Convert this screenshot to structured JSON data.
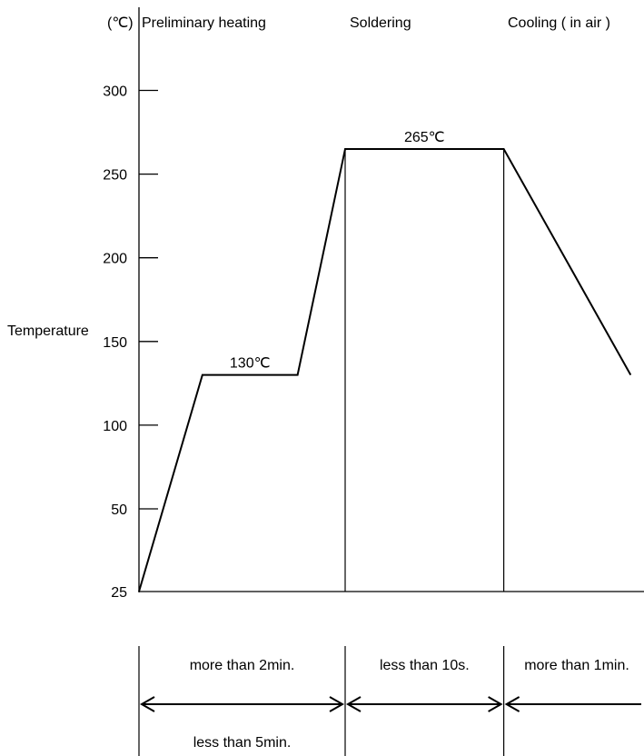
{
  "chart_data": {
    "type": "line",
    "unit_label": "(℃)",
    "ylabel": "Temperature",
    "y_ticks": [
      25,
      50,
      100,
      150,
      200,
      250,
      300
    ],
    "phases": [
      "Preliminary heating",
      "Soldering",
      "Cooling ( in air )"
    ],
    "annotations": [
      {
        "text": "130℃",
        "at_point": 1
      },
      {
        "text": "265℃",
        "at_point": 3
      }
    ],
    "profile": [
      {
        "t": 0,
        "temp": 25
      },
      {
        "t": 0.4,
        "temp": 130
      },
      {
        "t": 1.0,
        "temp": 130
      },
      {
        "t": 1.3,
        "temp": 265
      },
      {
        "t": 2.3,
        "temp": 265
      },
      {
        "t": 3.1,
        "temp": 130
      }
    ],
    "phase_boundaries": [
      0,
      1.3,
      2.3,
      3.1
    ],
    "durations": [
      {
        "text": "more than 2min.",
        "sub": "less than 5min."
      },
      {
        "text": "less than 10s.",
        "sub": ""
      },
      {
        "text": "more than 1min.",
        "sub": ""
      }
    ]
  }
}
